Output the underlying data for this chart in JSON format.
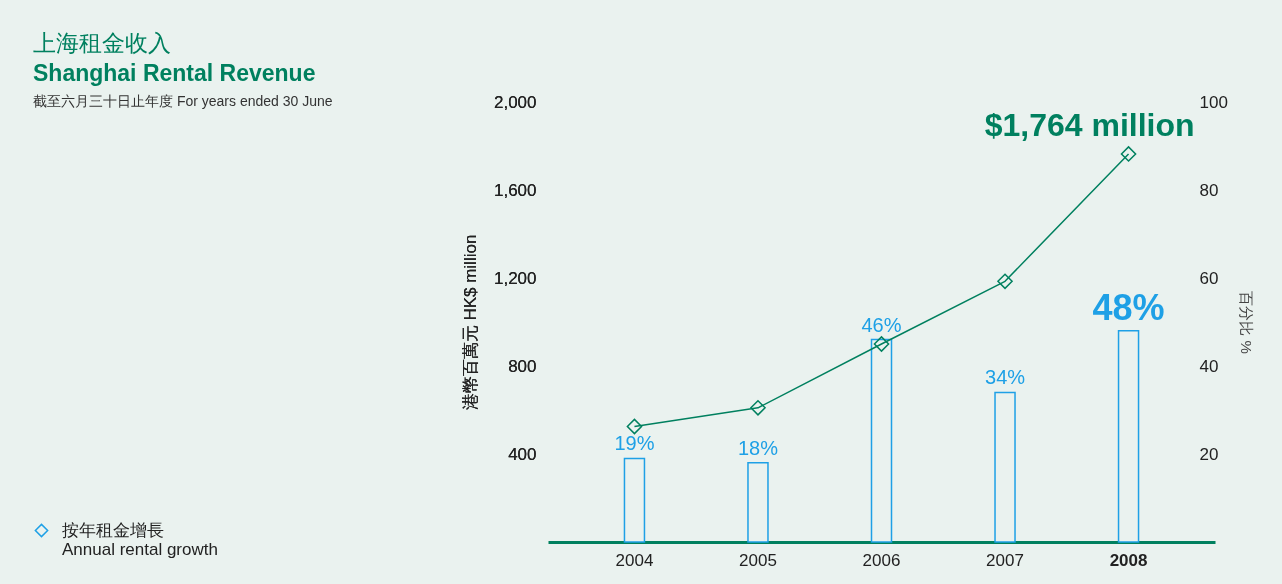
{
  "chart_data": {
    "type": "bar",
    "title": "上海租金收入\nShanghai Rental Revenue",
    "subtitle": "截至六月三十日止年度 For years ended 30 June",
    "categories": [
      "2004",
      "2005",
      "2006",
      "2007",
      "2008"
    ],
    "series": [
      {
        "name": "按年租金增長\nAnnual rental growth",
        "axis": "y2",
        "color": "#1ea0e6",
        "values": [
          19,
          18,
          46,
          34,
          48
        ],
        "value_labels": [
          "19%",
          "18%",
          "46%",
          "34%",
          "48%"
        ]
      },
      {
        "type": "line",
        "color": "#00805f",
        "values": [
          525,
          610,
          900,
          1185,
          1764
        ],
        "marker": "diamond"
      }
    ],
    "ylabel": "港幣百萬元 HK$ million",
    "y2label": "百分比 %",
    "ylim": [
      0,
      2000
    ],
    "yticks": [
      400,
      800,
      {
        "value": 1200,
        "label": "1,200"
      },
      {
        "value": 1600,
        "label": "1,600"
      },
      {
        "value": 2000,
        "label": "2,000"
      }
    ],
    "y2lim": [
      0,
      100
    ],
    "y2ticks": [
      20,
      40,
      60,
      80,
      100
    ],
    "annotations": [
      {
        "text": "$1,764 million",
        "x": "2008",
        "y": 1764
      }
    ],
    "legend": "bottom left",
    "grid": false
  }
}
